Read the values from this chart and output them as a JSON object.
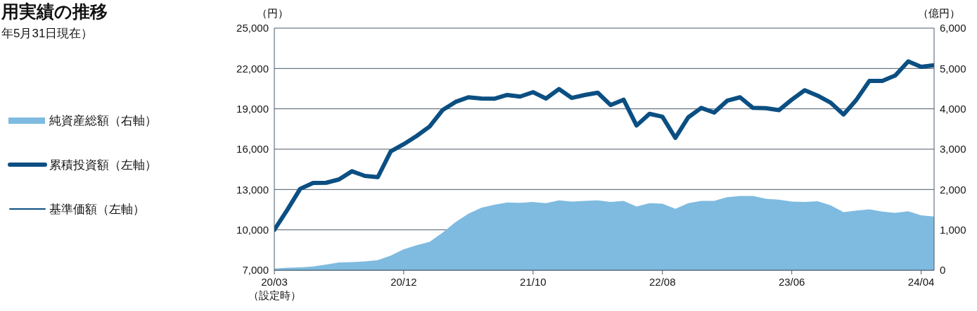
{
  "chart_data": {
    "type": "area",
    "title": "用実績の推移",
    "subtitle": "年5月31日現在）",
    "ylabel": "（円）",
    "y2label": "（億円）",
    "categories": [
      "20/03\n（設定時）",
      null,
      null,
      null,
      null,
      null,
      null,
      null,
      null,
      null,
      "20/12",
      null,
      null,
      null,
      null,
      null,
      null,
      null,
      null,
      null,
      "21/10",
      null,
      null,
      null,
      null,
      null,
      null,
      null,
      null,
      null,
      "22/08",
      null,
      null,
      null,
      null,
      null,
      null,
      null,
      null,
      null,
      "23/06",
      null,
      null,
      null,
      null,
      null,
      null,
      null,
      null,
      null,
      "24/04",
      null
    ],
    "series": [
      {
        "name": "純資産総額（右軸）",
        "axis": "y2",
        "color": "#7fbbe0",
        "values": [
          40,
          60,
          70,
          90,
          140,
          190,
          200,
          220,
          250,
          360,
          520,
          620,
          700,
          930,
          1190,
          1400,
          1550,
          1620,
          1680,
          1670,
          1690,
          1660,
          1730,
          1700,
          1720,
          1730,
          1690,
          1720,
          1580,
          1660,
          1650,
          1520,
          1660,
          1720,
          1720,
          1810,
          1840,
          1840,
          1770,
          1750,
          1700,
          1690,
          1710,
          1610,
          1440,
          1480,
          1510,
          1450,
          1420,
          1460,
          1360,
          1330
        ]
      },
      {
        "name": "累積投資額（左軸）",
        "type": "line",
        "color": "#0b4f82",
        "values": [
          10000,
          11480,
          13050,
          13490,
          13500,
          13750,
          14360,
          14010,
          13920,
          15840,
          16370,
          16980,
          17680,
          18900,
          19510,
          19860,
          19770,
          19750,
          20030,
          19910,
          20240,
          19770,
          20470,
          19810,
          20030,
          20200,
          19280,
          19680,
          17760,
          18630,
          18410,
          16840,
          18370,
          19070,
          18720,
          19600,
          19860,
          19070,
          19050,
          18900,
          19680,
          20380,
          19980,
          19460,
          18580,
          19680,
          21080,
          21080,
          21480,
          22530,
          22120,
          22240
        ]
      },
      {
        "name": "基準価額（左軸）",
        "type": "line",
        "color": "#0b4f82",
        "values": [
          null,
          null,
          null,
          null,
          null,
          null,
          null,
          null,
          null,
          null,
          null,
          null,
          null,
          null,
          null,
          null,
          null,
          null,
          null,
          null,
          null,
          null,
          null,
          null,
          null,
          null,
          null,
          null,
          null,
          null,
          null,
          null,
          null,
          null,
          null,
          null,
          null,
          null,
          null,
          null,
          null,
          null,
          null,
          null,
          null,
          null,
          null,
          null,
          null,
          null,
          null,
          null
        ]
      }
    ],
    "ylim": [
      7000,
      25000
    ],
    "yticks": [
      {
        "value": 7000,
        "label": "7,000"
      },
      {
        "value": 10000,
        "label": "10,000"
      },
      {
        "value": 13000,
        "label": "13,000"
      },
      {
        "value": 16000,
        "label": "16,000"
      },
      {
        "value": 19000,
        "label": "19,000"
      },
      {
        "value": 22000,
        "label": "22,000"
      },
      {
        "value": 25000,
        "label": "25,000"
      }
    ],
    "y2lim": [
      0,
      6000
    ],
    "y2ticks": [
      0,
      {
        "value": 1000,
        "label": "1,000"
      },
      {
        "value": 2000,
        "label": "2,000"
      },
      {
        "value": 3000,
        "label": "3,000"
      },
      {
        "value": 4000,
        "label": "4,000"
      },
      {
        "value": 5000,
        "label": "5,000"
      },
      {
        "value": 6000,
        "label": "6,000"
      }
    ],
    "grid": "y",
    "legend": "left",
    "marker": "none",
    "line_style": "solid"
  }
}
